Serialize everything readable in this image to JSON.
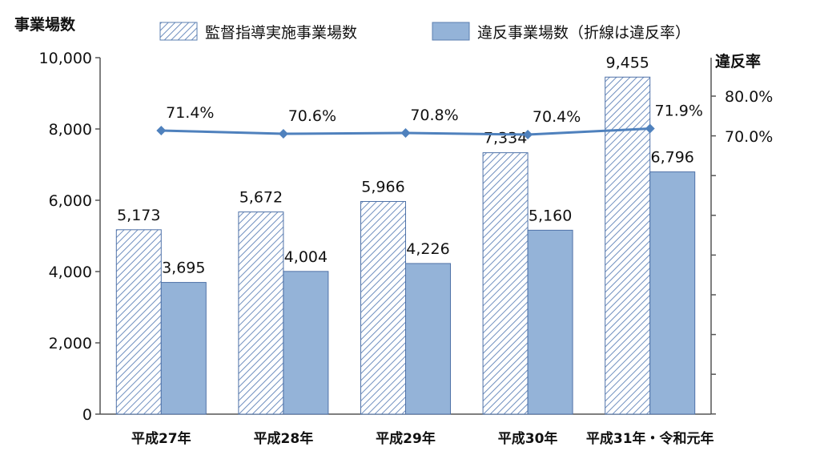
{
  "chart_data": {
    "type": "bar",
    "categories": [
      "平成27年",
      "平成28年",
      "平成29年",
      "平成30年",
      "平成31年・令和元年"
    ],
    "series": [
      {
        "name": "監督指導実施事業場数",
        "values": [
          5173,
          5672,
          5966,
          7334,
          9455
        ],
        "labels": [
          "5,173",
          "5,672",
          "5,966",
          "7,334",
          "9,455"
        ],
        "pattern": "hatched"
      },
      {
        "name": "違反事業場数（折線は違反率）",
        "values": [
          3695,
          4004,
          4226,
          5160,
          6796
        ],
        "labels": [
          "3,695",
          "4,004",
          "4,226",
          "5,160",
          "6,796"
        ],
        "color": "#94b3d8"
      }
    ],
    "line": {
      "values": [
        71.4,
        70.6,
        70.8,
        70.4,
        71.9
      ],
      "labels": [
        "71.4%",
        "70.6%",
        "70.8%",
        "70.4%",
        "71.9%"
      ],
      "color": "#4f81bd"
    },
    "ylabel": "事業場数",
    "ylim": [
      0,
      10000
    ],
    "yticks": [
      "0",
      "2,000",
      "4,000",
      "6,000",
      "8,000",
      "10,000"
    ],
    "y2label": "違反率",
    "y2ticks": [
      "80.0%",
      "70.0%"
    ],
    "grid": false,
    "legend": "top"
  }
}
